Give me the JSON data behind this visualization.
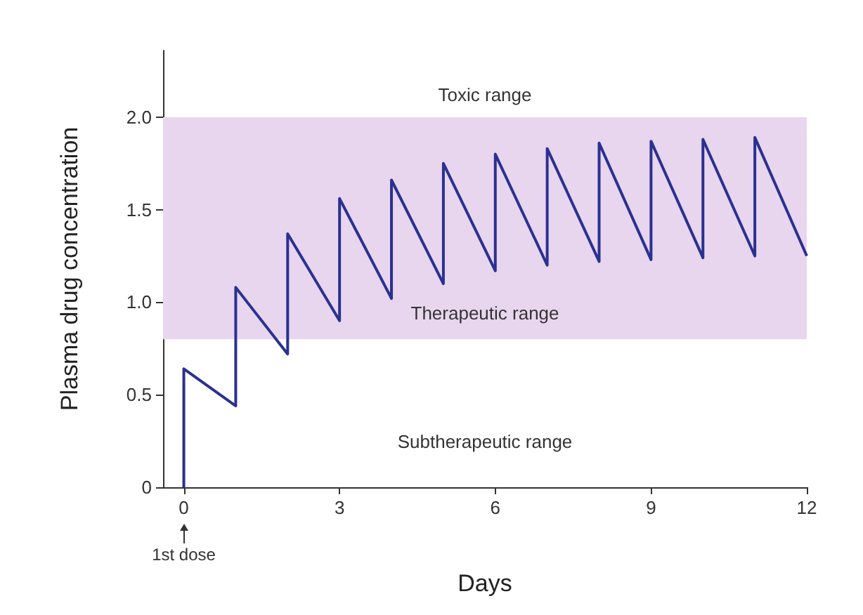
{
  "chart_data": {
    "type": "line",
    "xlabel": "Days",
    "ylabel": "Plasma drug concentration",
    "x": [
      0,
      0,
      1,
      1,
      2,
      2,
      3,
      3,
      4,
      4,
      5,
      5,
      6,
      6,
      7,
      7,
      8,
      8,
      9,
      9,
      10,
      10,
      11,
      11,
      12
    ],
    "series": [
      {
        "color": "#2b3190",
        "values": [
          0,
          0.64,
          0.44,
          1.08,
          0.72,
          1.37,
          0.9,
          1.56,
          1.02,
          1.66,
          1.1,
          1.75,
          1.17,
          1.8,
          1.2,
          1.83,
          1.22,
          1.86,
          1.23,
          1.87,
          1.24,
          1.88,
          1.25,
          1.89,
          1.25
        ]
      }
    ],
    "xlim": [
      -0.4,
      12
    ],
    "xticks": [
      0,
      3,
      6,
      9,
      12
    ],
    "ylim": [
      0,
      2.36
    ],
    "yticks": [
      0,
      0.5,
      {
        "value": 1,
        "label": "1.0"
      },
      1.5,
      {
        "value": 2,
        "label": "2.0"
      }
    ],
    "bands": [
      {
        "axis": "y",
        "from": 0.8,
        "to": 2.0,
        "label": "Therapeutic range",
        "color": "#e8d6ef"
      }
    ],
    "annotations": [
      "Toxic range",
      "Subtherapeutic range",
      "1st dose"
    ],
    "grid": false,
    "marker": "none",
    "line_style": "solid"
  }
}
